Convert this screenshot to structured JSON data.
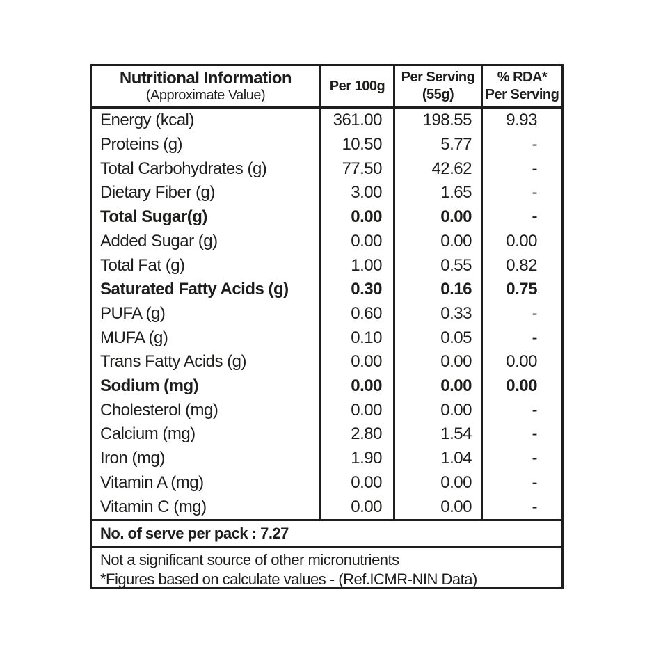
{
  "table": {
    "header": {
      "title": "Nutritional Information",
      "subtitle": "(Approximate Value)",
      "col_per_100g": "Per 100g",
      "col_per_serving_line1": "Per Serving",
      "col_per_serving_line2": "(55g)",
      "col_rda_line1": "% RDA*",
      "col_rda_line2": "Per Serving"
    },
    "rows": [
      {
        "label": "Energy (kcal)",
        "per_100g": "361.00",
        "per_serving": "198.55",
        "rda": "9.93",
        "bold": false
      },
      {
        "label": "Proteins (g)",
        "per_100g": "10.50",
        "per_serving": "5.77",
        "rda": "-",
        "bold": false
      },
      {
        "label": "Total Carbohydrates (g)",
        "per_100g": "77.50",
        "per_serving": "42.62",
        "rda": "-",
        "bold": false
      },
      {
        "label": "Dietary Fiber (g)",
        "per_100g": "3.00",
        "per_serving": "1.65",
        "rda": "-",
        "bold": false
      },
      {
        "label": "Total Sugar(g)",
        "per_100g": "0.00",
        "per_serving": "0.00",
        "rda": "-",
        "bold": true
      },
      {
        "label": "Added Sugar (g)",
        "per_100g": "0.00",
        "per_serving": "0.00",
        "rda": "0.00",
        "bold": false
      },
      {
        "label": "Total Fat (g)",
        "per_100g": "1.00",
        "per_serving": "0.55",
        "rda": "0.82",
        "bold": false
      },
      {
        "label": "Saturated Fatty Acids (g)",
        "per_100g": "0.30",
        "per_serving": "0.16",
        "rda": "0.75",
        "bold": true
      },
      {
        "label": "PUFA (g)",
        "per_100g": "0.60",
        "per_serving": "0.33",
        "rda": "-",
        "bold": false
      },
      {
        "label": "MUFA (g)",
        "per_100g": "0.10",
        "per_serving": "0.05",
        "rda": "-",
        "bold": false
      },
      {
        "label": "Trans Fatty Acids (g)",
        "per_100g": "0.00",
        "per_serving": "0.00",
        "rda": "0.00",
        "bold": false
      },
      {
        "label": "Sodium (mg)",
        "per_100g": "0.00",
        "per_serving": "0.00",
        "rda": "0.00",
        "bold": true
      },
      {
        "label": "Cholesterol (mg)",
        "per_100g": "0.00",
        "per_serving": "0.00",
        "rda": "-",
        "bold": false
      },
      {
        "label": "Calcium (mg)",
        "per_100g": "2.80",
        "per_serving": "1.54",
        "rda": "-",
        "bold": false
      },
      {
        "label": "Iron (mg)",
        "per_100g": "1.90",
        "per_serving": "1.04",
        "rda": "-",
        "bold": false
      },
      {
        "label": "Vitamin A (mg)",
        "per_100g": "0.00",
        "per_serving": "0.00",
        "rda": "-",
        "bold": false
      },
      {
        "label": "Vitamin C (mg)",
        "per_100g": "0.00",
        "per_serving": "0.00",
        "rda": "-",
        "bold": false
      }
    ],
    "serve_per_pack": "No. of serve per pack : 7.27",
    "notes": {
      "line1": "Not a significant source of other micronutrients",
      "line2": "*Figures based on calculate values - (Ref.ICMR-NIN Data)"
    },
    "colors": {
      "border": "#1e1e1e",
      "text": "#1d1d1b",
      "background": "#ffffff"
    }
  }
}
